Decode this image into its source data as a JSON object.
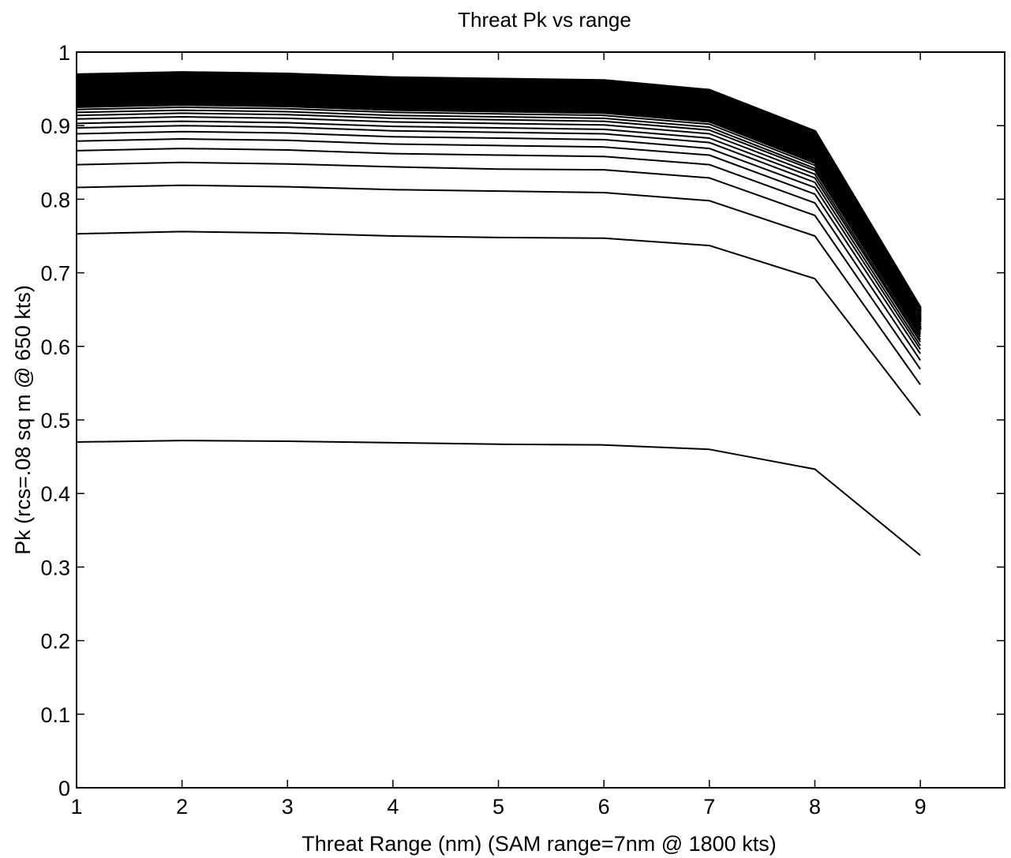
{
  "chart_data": {
    "type": "line",
    "title": "Threat Pk vs range",
    "xlabel": "Threat Range (nm) (SAM range=7nm @ 1800 kts)",
    "ylabel": "Pk (rcs=.08 sq m @ 650 kts)",
    "xlim": [
      1,
      9.8
    ],
    "ylim": [
      0,
      1
    ],
    "grid": false,
    "xticks": [
      1,
      2,
      3,
      4,
      5,
      6,
      7,
      8,
      9
    ],
    "yticks": [
      0,
      0.1,
      0.2,
      0.3,
      0.4,
      0.5,
      0.6,
      0.7,
      0.8,
      0.9,
      1
    ],
    "x": [
      1,
      2,
      3,
      4,
      5,
      6,
      7,
      8,
      9
    ],
    "line_color": "#000000",
    "series": [
      {
        "values": [
          0.47,
          0.472,
          0.471,
          0.469,
          0.467,
          0.466,
          0.46,
          0.433,
          0.316
        ]
      },
      {
        "values": [
          0.753,
          0.756,
          0.754,
          0.75,
          0.748,
          0.747,
          0.737,
          0.692,
          0.506
        ]
      },
      {
        "values": [
          0.816,
          0.819,
          0.817,
          0.813,
          0.811,
          0.809,
          0.798,
          0.75,
          0.548
        ]
      },
      {
        "values": [
          0.847,
          0.85,
          0.848,
          0.844,
          0.841,
          0.84,
          0.829,
          0.778,
          0.569
        ]
      },
      {
        "values": [
          0.866,
          0.869,
          0.867,
          0.862,
          0.86,
          0.858,
          0.847,
          0.795,
          0.581
        ]
      },
      {
        "values": [
          0.879,
          0.882,
          0.88,
          0.875,
          0.873,
          0.871,
          0.86,
          0.807,
          0.59
        ]
      },
      {
        "values": [
          0.889,
          0.892,
          0.89,
          0.885,
          0.883,
          0.881,
          0.869,
          0.816,
          0.596
        ]
      },
      {
        "values": [
          0.897,
          0.9,
          0.898,
          0.893,
          0.891,
          0.889,
          0.877,
          0.823,
          0.601
        ]
      },
      {
        "values": [
          0.903,
          0.906,
          0.904,
          0.899,
          0.897,
          0.895,
          0.883,
          0.829,
          0.606
        ]
      },
      {
        "values": [
          0.909,
          0.912,
          0.91,
          0.905,
          0.903,
          0.901,
          0.889,
          0.834,
          0.609
        ]
      },
      {
        "values": [
          0.914,
          0.917,
          0.915,
          0.91,
          0.908,
          0.906,
          0.894,
          0.839,
          0.613
        ]
      },
      {
        "values": [
          0.918,
          0.921,
          0.919,
          0.914,
          0.912,
          0.91,
          0.898,
          0.842,
          0.616
        ]
      },
      {
        "values": [
          0.922,
          0.925,
          0.923,
          0.918,
          0.916,
          0.914,
          0.902,
          0.846,
          0.618
        ]
      },
      {
        "values": [
          0.925,
          0.928,
          0.926,
          0.921,
          0.919,
          0.917,
          0.905,
          0.849,
          0.62
        ]
      },
      {
        "values": [
          0.928,
          0.931,
          0.929,
          0.924,
          0.922,
          0.92,
          0.908,
          0.852,
          0.622
        ]
      },
      {
        "values": [
          0.931,
          0.934,
          0.932,
          0.927,
          0.925,
          0.923,
          0.911,
          0.855,
          0.624
        ]
      },
      {
        "values": [
          0.934,
          0.937,
          0.935,
          0.93,
          0.928,
          0.926,
          0.914,
          0.858,
          0.626
        ]
      },
      {
        "values": [
          0.937,
          0.94,
          0.938,
          0.933,
          0.931,
          0.929,
          0.917,
          0.861,
          0.629
        ]
      },
      {
        "values": [
          0.94,
          0.943,
          0.941,
          0.936,
          0.934,
          0.932,
          0.92,
          0.864,
          0.632
        ]
      },
      {
        "values": [
          0.943,
          0.946,
          0.944,
          0.939,
          0.937,
          0.935,
          0.923,
          0.867,
          0.634
        ]
      },
      {
        "values": [
          0.946,
          0.949,
          0.947,
          0.942,
          0.94,
          0.938,
          0.926,
          0.87,
          0.636
        ]
      },
      {
        "values": [
          0.949,
          0.952,
          0.95,
          0.945,
          0.943,
          0.941,
          0.929,
          0.873,
          0.638
        ]
      },
      {
        "values": [
          0.952,
          0.955,
          0.953,
          0.948,
          0.946,
          0.944,
          0.932,
          0.876,
          0.64
        ]
      },
      {
        "values": [
          0.955,
          0.958,
          0.956,
          0.951,
          0.949,
          0.947,
          0.935,
          0.879,
          0.642
        ]
      },
      {
        "values": [
          0.958,
          0.961,
          0.959,
          0.954,
          0.952,
          0.95,
          0.938,
          0.882,
          0.644
        ]
      },
      {
        "values": [
          0.961,
          0.964,
          0.962,
          0.957,
          0.955,
          0.953,
          0.941,
          0.885,
          0.646
        ]
      },
      {
        "values": [
          0.964,
          0.967,
          0.965,
          0.96,
          0.958,
          0.956,
          0.944,
          0.888,
          0.648
        ]
      },
      {
        "values": [
          0.967,
          0.97,
          0.968,
          0.963,
          0.961,
          0.959,
          0.946,
          0.89,
          0.65
        ]
      },
      {
        "values": [
          0.969,
          0.972,
          0.97,
          0.965,
          0.963,
          0.961,
          0.948,
          0.892,
          0.652
        ]
      }
    ]
  }
}
